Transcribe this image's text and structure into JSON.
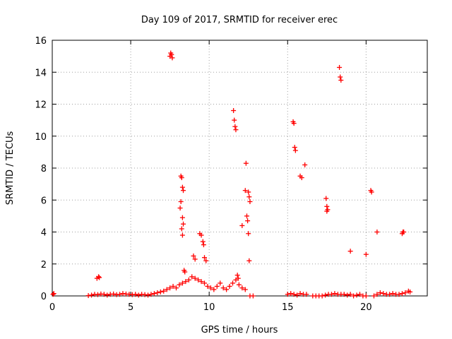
{
  "chart_data": {
    "type": "scatter",
    "title": "Day 109 of 2017, SRMTID for receiver erec",
    "xlabel": "GPS time / hours",
    "ylabel": "SRMTID / TECUs",
    "xlim": [
      0,
      23.9
    ],
    "ylim": [
      0,
      16
    ],
    "xticks": [
      0,
      5,
      10,
      15,
      20
    ],
    "yticks": [
      0,
      2,
      4,
      6,
      8,
      10,
      12,
      14,
      16
    ],
    "grid": true,
    "marker": "plus",
    "marker_color": "#ff0000",
    "series": [
      {
        "name": "SRMTID",
        "points": [
          [
            0.05,
            0.1
          ],
          [
            0.1,
            0.15
          ],
          [
            2.3,
            0.02
          ],
          [
            2.5,
            0.05
          ],
          [
            2.7,
            0.1
          ],
          [
            2.9,
            0.08
          ],
          [
            3.1,
            0.12
          ],
          [
            3.3,
            0.1
          ],
          [
            3.5,
            0.05
          ],
          [
            3.7,
            0.1
          ],
          [
            3.9,
            0.12
          ],
          [
            4.1,
            0.08
          ],
          [
            4.3,
            0.1
          ],
          [
            4.5,
            0.15
          ],
          [
            4.7,
            0.12
          ],
          [
            4.9,
            0.1
          ],
          [
            5.1,
            0.08
          ],
          [
            5.3,
            0.1
          ],
          [
            5.5,
            0.05
          ],
          [
            5.7,
            0.1
          ],
          [
            5.9,
            0.08
          ],
          [
            6.1,
            0.05
          ],
          [
            6.3,
            0.1
          ],
          [
            6.5,
            0.15
          ],
          [
            6.7,
            0.2
          ],
          [
            6.9,
            0.25
          ],
          [
            7.1,
            0.3
          ],
          [
            7.3,
            0.4
          ],
          [
            7.5,
            0.5
          ],
          [
            7.7,
            0.6
          ],
          [
            7.9,
            0.5
          ],
          [
            8.1,
            0.7
          ],
          [
            8.3,
            0.8
          ],
          [
            8.5,
            0.9
          ],
          [
            8.7,
            1.0
          ],
          [
            8.9,
            1.2
          ],
          [
            9.1,
            1.1
          ],
          [
            9.3,
            1.0
          ],
          [
            9.5,
            0.9
          ],
          [
            9.7,
            0.8
          ],
          [
            9.9,
            0.6
          ],
          [
            10.1,
            0.5
          ],
          [
            10.3,
            0.4
          ],
          [
            10.5,
            0.6
          ],
          [
            10.7,
            0.8
          ],
          [
            10.9,
            0.5
          ],
          [
            11.1,
            0.4
          ],
          [
            11.3,
            0.6
          ],
          [
            11.5,
            0.8
          ],
          [
            11.7,
            1.0
          ],
          [
            11.9,
            0.7
          ],
          [
            12.1,
            0.5
          ],
          [
            12.3,
            0.4
          ],
          [
            2.85,
            1.1
          ],
          [
            2.95,
            1.2
          ],
          [
            3.0,
            1.15
          ],
          [
            7.5,
            15.0
          ],
          [
            7.6,
            15.1
          ],
          [
            7.65,
            14.9
          ],
          [
            7.55,
            15.2
          ],
          [
            8.2,
            7.5
          ],
          [
            8.25,
            7.4
          ],
          [
            8.3,
            6.8
          ],
          [
            8.35,
            6.6
          ],
          [
            8.2,
            5.9
          ],
          [
            8.15,
            5.5
          ],
          [
            8.3,
            4.9
          ],
          [
            8.35,
            4.5
          ],
          [
            8.25,
            4.2
          ],
          [
            8.3,
            3.8
          ],
          [
            8.4,
            1.6
          ],
          [
            8.45,
            1.5
          ],
          [
            9.0,
            2.5
          ],
          [
            9.1,
            2.3
          ],
          [
            9.4,
            3.9
          ],
          [
            9.5,
            3.8
          ],
          [
            9.6,
            3.4
          ],
          [
            9.65,
            3.2
          ],
          [
            9.7,
            2.4
          ],
          [
            9.8,
            2.2
          ],
          [
            11.55,
            11.6
          ],
          [
            11.6,
            11.0
          ],
          [
            11.65,
            10.6
          ],
          [
            11.7,
            10.4
          ],
          [
            11.8,
            1.3
          ],
          [
            11.85,
            1.1
          ],
          [
            12.1,
            4.4
          ],
          [
            12.3,
            6.6
          ],
          [
            12.35,
            8.3
          ],
          [
            12.4,
            5.0
          ],
          [
            12.45,
            4.7
          ],
          [
            12.5,
            6.5
          ],
          [
            12.55,
            6.2
          ],
          [
            12.6,
            5.9
          ],
          [
            12.5,
            3.9
          ],
          [
            12.55,
            2.2
          ],
          [
            12.8,
            0.0
          ],
          [
            12.6,
            0.0
          ],
          [
            15.0,
            0.1
          ],
          [
            15.2,
            0.15
          ],
          [
            15.4,
            0.1
          ],
          [
            15.6,
            0.05
          ],
          [
            15.8,
            0.15
          ],
          [
            16.0,
            0.1
          ],
          [
            16.2,
            0.1
          ],
          [
            15.35,
            10.9
          ],
          [
            15.4,
            10.8
          ],
          [
            15.45,
            9.3
          ],
          [
            15.5,
            9.1
          ],
          [
            15.8,
            7.5
          ],
          [
            15.9,
            7.4
          ],
          [
            16.1,
            8.2
          ],
          [
            16.6,
            0.0
          ],
          [
            16.8,
            0.0
          ],
          [
            17.0,
            0.0
          ],
          [
            17.2,
            0.0
          ],
          [
            17.4,
            0.05
          ],
          [
            17.6,
            0.1
          ],
          [
            17.8,
            0.1
          ],
          [
            18.0,
            0.15
          ],
          [
            18.2,
            0.1
          ],
          [
            18.4,
            0.1
          ],
          [
            18.6,
            0.1
          ],
          [
            18.8,
            0.05
          ],
          [
            19.0,
            0.1
          ],
          [
            19.2,
            0.0
          ],
          [
            19.4,
            0.05
          ],
          [
            19.6,
            0.1
          ],
          [
            19.8,
            0.0
          ],
          [
            20.0,
            0.0
          ],
          [
            17.45,
            6.1
          ],
          [
            17.5,
            5.6
          ],
          [
            17.55,
            5.4
          ],
          [
            17.5,
            5.3
          ],
          [
            18.3,
            14.3
          ],
          [
            18.35,
            13.7
          ],
          [
            18.4,
            13.5
          ],
          [
            19.0,
            2.8
          ],
          [
            20.0,
            2.6
          ],
          [
            20.3,
            6.6
          ],
          [
            20.35,
            6.5
          ],
          [
            20.7,
            4.0
          ],
          [
            20.5,
            0.0
          ],
          [
            20.7,
            0.1
          ],
          [
            20.9,
            0.2
          ],
          [
            21.1,
            0.15
          ],
          [
            21.3,
            0.1
          ],
          [
            21.5,
            0.1
          ],
          [
            21.7,
            0.15
          ],
          [
            21.9,
            0.1
          ],
          [
            22.1,
            0.1
          ],
          [
            22.3,
            0.15
          ],
          [
            22.5,
            0.2
          ],
          [
            22.7,
            0.3
          ],
          [
            22.8,
            0.25
          ],
          [
            22.3,
            3.9
          ],
          [
            22.35,
            4.0
          ],
          [
            22.4,
            4.0
          ]
        ]
      }
    ]
  }
}
